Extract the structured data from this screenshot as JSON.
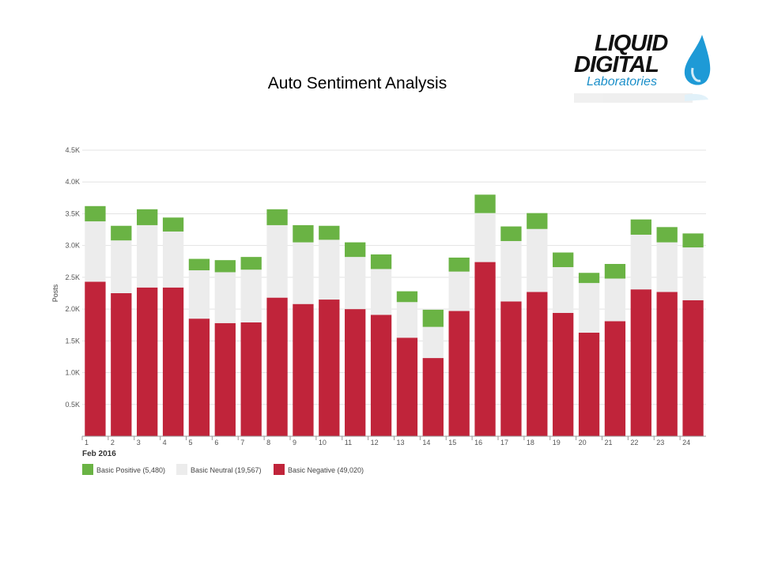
{
  "logo": {
    "line1": "LIQUID",
    "line2": "DIGITAL",
    "line3": "Laboratories"
  },
  "chart_data": {
    "type": "bar",
    "stacked": true,
    "title": "Auto Sentiment Analysis",
    "xlabel": "Feb 2016",
    "ylabel": "Posts",
    "ylim": [
      0,
      4500
    ],
    "yticks": [
      0.5,
      1.0,
      1.5,
      2.0,
      2.5,
      3.0,
      3.5,
      4.0,
      4.5
    ],
    "ytick_labels": [
      "0.5K",
      "1.0K",
      "1.5K",
      "2.0K",
      "2.5K",
      "3.0K",
      "3.5K",
      "4.0K",
      "4.5K"
    ],
    "categories": [
      "1",
      "2",
      "3",
      "4",
      "5",
      "6",
      "7",
      "8",
      "9",
      "10",
      "11",
      "12",
      "13",
      "14",
      "15",
      "16",
      "17",
      "18",
      "19",
      "20",
      "21",
      "22",
      "23",
      "24"
    ],
    "series": [
      {
        "name": "Basic Negative",
        "legend_label": "Basic Negative (49,020)",
        "color": "#c0243a",
        "values": [
          2430,
          2250,
          2340,
          2340,
          1850,
          1780,
          1790,
          2180,
          2080,
          2150,
          2000,
          1910,
          1550,
          1230,
          1970,
          2740,
          2120,
          2270,
          1940,
          1630,
          1810,
          2310,
          2270,
          2140
        ]
      },
      {
        "name": "Basic Neutral",
        "legend_label": "Basic Neutral (19,567)",
        "color": "#ececec",
        "values": [
          950,
          830,
          980,
          880,
          760,
          800,
          830,
          1140,
          970,
          940,
          820,
          720,
          560,
          490,
          620,
          770,
          950,
          990,
          720,
          780,
          670,
          860,
          780,
          830
        ]
      },
      {
        "name": "Basic Positive",
        "legend_label": "Basic Positive (5,480)",
        "color": "#6ab344",
        "values": [
          240,
          230,
          250,
          220,
          180,
          190,
          200,
          250,
          270,
          220,
          230,
          230,
          170,
          270,
          220,
          290,
          230,
          250,
          230,
          160,
          230,
          240,
          240,
          220
        ]
      }
    ],
    "legend_order": [
      "Basic Positive",
      "Basic Neutral",
      "Basic Negative"
    ],
    "legend_position": "bottom-left",
    "grid": true
  }
}
